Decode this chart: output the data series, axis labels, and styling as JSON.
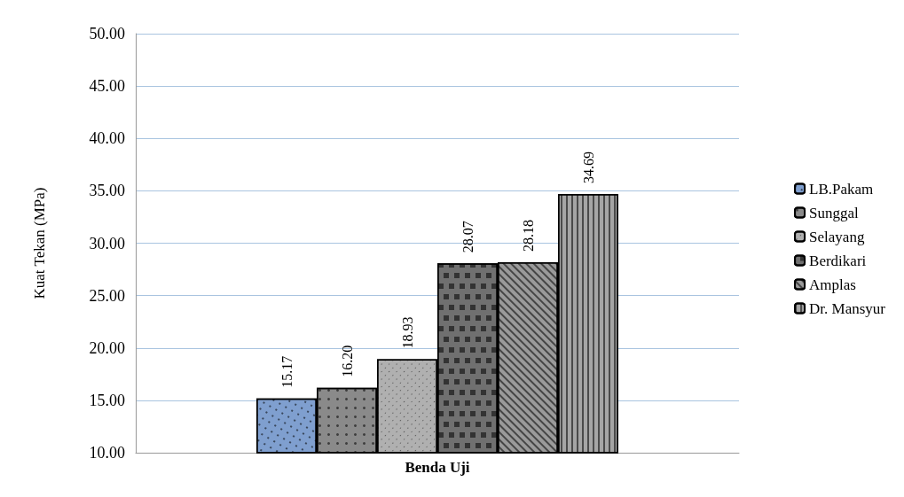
{
  "chart_data": {
    "type": "bar",
    "ylabel": "Kuat Tekan (MPa)",
    "categories": [
      "Benda Uji"
    ],
    "series": [
      {
        "name": "LB.Pakam",
        "color": "#7f9fcf",
        "values": [
          15.17
        ]
      },
      {
        "name": "Sunggal",
        "color": "#8a8a8a",
        "values": [
          16.2
        ]
      },
      {
        "name": "Selayang",
        "color": "#b0b0b0",
        "values": [
          18.93
        ]
      },
      {
        "name": "Berdikari",
        "color": "#707070",
        "values": [
          28.07
        ]
      },
      {
        "name": "Amplas",
        "color": "#9a9a9a",
        "values": [
          28.18
        ]
      },
      {
        "name": "Dr. Mansyur",
        "color": "#a5a5a5",
        "values": [
          34.69
        ]
      }
    ],
    "value_labels": [
      [
        "15.17"
      ],
      [
        "16.20"
      ],
      [
        "18.93"
      ],
      [
        "28.07"
      ],
      [
        "28.18"
      ],
      [
        "34.69"
      ]
    ],
    "ylim": [
      10,
      50
    ],
    "yticks": [
      {
        "value": 10,
        "label": "10.00"
      },
      {
        "value": 15,
        "label": "15.00"
      },
      {
        "value": 20,
        "label": "20.00"
      },
      {
        "value": 25,
        "label": "25.00"
      },
      {
        "value": 30,
        "label": "30.00"
      },
      {
        "value": 35,
        "label": "35.00"
      },
      {
        "value": 40,
        "label": "40.00"
      },
      {
        "value": 45,
        "label": "45.00"
      },
      {
        "value": 50,
        "label": "50.00"
      }
    ],
    "grid": "y",
    "legend": "right"
  }
}
